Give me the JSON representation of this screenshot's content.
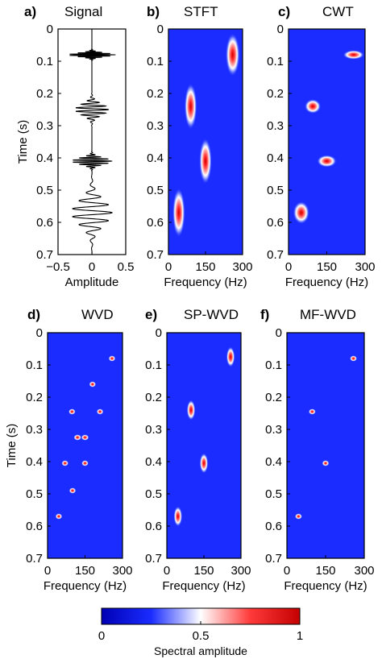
{
  "figure": {
    "colorbar": {
      "label": "Spectral amplitude",
      "ticks": [
        "0",
        "0.5",
        "1"
      ],
      "range": [
        0,
        1
      ],
      "colors": [
        "#0000b4",
        "#1a2cff",
        "#ffffff",
        "#ff3a3a",
        "#c40000"
      ]
    }
  },
  "chart_data": [
    {
      "id": "a",
      "letter": "a)",
      "title": "Signal",
      "type": "line",
      "xlabel": "Amplitude",
      "ylabel": "Time (s)",
      "xlim": [
        -0.5,
        0.5
      ],
      "ylim": [
        0,
        0.7
      ],
      "xticks": [
        "−0.5",
        "0",
        "0.5"
      ],
      "yticks": [
        "0",
        "0.1",
        "0.2",
        "0.3",
        "0.4",
        "0.5",
        "0.6",
        "0.7"
      ],
      "events": [
        {
          "t": 0.08,
          "amp": 0.35,
          "freq": 260
        },
        {
          "t": 0.25,
          "amp": 0.25,
          "freq": 90
        },
        {
          "t": 0.41,
          "amp": 0.3,
          "freq": 150
        },
        {
          "t": 0.57,
          "amp": 0.3,
          "freq": 40
        }
      ]
    },
    {
      "id": "b",
      "letter": "b)",
      "title": "STFT",
      "type": "heatmap",
      "xlabel": "Frequency (Hz)",
      "ylabel": "",
      "xlim": [
        0,
        300
      ],
      "ylim": [
        0,
        0.7
      ],
      "xticks": [
        "0",
        "150",
        "300"
      ],
      "yticks": [
        "0",
        "0.1",
        "0.2",
        "0.3",
        "0.4",
        "0.5",
        "0.6",
        "0.7"
      ],
      "blobs": [
        {
          "f": 260,
          "t": 0.08,
          "sf": 18,
          "st": 0.042,
          "a": 1
        },
        {
          "f": 90,
          "t": 0.24,
          "sf": 16,
          "st": 0.045,
          "a": 1
        },
        {
          "f": 150,
          "t": 0.41,
          "sf": 16,
          "st": 0.045,
          "a": 1
        },
        {
          "f": 42,
          "t": 0.57,
          "sf": 16,
          "st": 0.048,
          "a": 1
        }
      ]
    },
    {
      "id": "c",
      "letter": "c)",
      "title": "CWT",
      "type": "heatmap",
      "xlabel": "Frequency (Hz)",
      "ylabel": "",
      "xlim": [
        0,
        300
      ],
      "ylim": [
        0,
        0.7
      ],
      "xticks": [
        "0",
        "150",
        "300"
      ],
      "yticks": [
        "0",
        "0.1",
        "0.2",
        "0.3",
        "0.4",
        "0.5",
        "0.6",
        "0.7"
      ],
      "blobs": [
        {
          "f": 255,
          "t": 0.08,
          "sf": 26,
          "st": 0.009,
          "a": 1
        },
        {
          "f": 95,
          "t": 0.24,
          "sf": 20,
          "st": 0.014,
          "a": 1
        },
        {
          "f": 150,
          "t": 0.41,
          "sf": 24,
          "st": 0.012,
          "a": 1
        },
        {
          "f": 50,
          "t": 0.57,
          "sf": 20,
          "st": 0.022,
          "a": 1
        }
      ]
    },
    {
      "id": "d",
      "letter": "d)",
      "title": "WVD",
      "type": "heatmap",
      "xlabel": "Frequency (Hz)",
      "ylabel": "Time (s)",
      "xlim": [
        0,
        300
      ],
      "ylim": [
        0,
        0.7
      ],
      "xticks": [
        "0",
        "150",
        "300"
      ],
      "yticks": [
        "0",
        "0.1",
        "0.2",
        "0.3",
        "0.4",
        "0.5",
        "0.6",
        "0.7"
      ],
      "blobs": [
        {
          "f": 258,
          "t": 0.08,
          "sf": 9,
          "st": 0.006,
          "a": 1
        },
        {
          "f": 180,
          "t": 0.16,
          "sf": 9,
          "st": 0.006,
          "a": 1
        },
        {
          "f": 98,
          "t": 0.245,
          "sf": 9,
          "st": 0.006,
          "a": 1
        },
        {
          "f": 210,
          "t": 0.245,
          "sf": 9,
          "st": 0.006,
          "a": 1
        },
        {
          "f": 120,
          "t": 0.325,
          "sf": 10,
          "st": 0.006,
          "a": 1
        },
        {
          "f": 150,
          "t": 0.325,
          "sf": 10,
          "st": 0.006,
          "a": 1
        },
        {
          "f": 70,
          "t": 0.405,
          "sf": 9,
          "st": 0.006,
          "a": 1
        },
        {
          "f": 150,
          "t": 0.405,
          "sf": 9,
          "st": 0.006,
          "a": 1
        },
        {
          "f": 100,
          "t": 0.49,
          "sf": 9,
          "st": 0.006,
          "a": 1
        },
        {
          "f": 45,
          "t": 0.57,
          "sf": 9,
          "st": 0.006,
          "a": 1
        }
      ]
    },
    {
      "id": "e",
      "letter": "e)",
      "title": "SP-WVD",
      "type": "heatmap",
      "xlabel": "Frequency (Hz)",
      "ylabel": "",
      "xlim": [
        0,
        300
      ],
      "ylim": [
        0,
        0.7
      ],
      "xticks": [
        "0",
        "150",
        "300"
      ],
      "yticks": [
        "0",
        "0.1",
        "0.2",
        "0.3",
        "0.4",
        "0.5",
        "0.6",
        "0.7"
      ],
      "blobs": [
        {
          "f": 258,
          "t": 0.075,
          "sf": 11,
          "st": 0.02,
          "a": 1
        },
        {
          "f": 98,
          "t": 0.24,
          "sf": 11,
          "st": 0.02,
          "a": 1
        },
        {
          "f": 150,
          "t": 0.405,
          "sf": 11,
          "st": 0.02,
          "a": 1
        },
        {
          "f": 45,
          "t": 0.57,
          "sf": 11,
          "st": 0.02,
          "a": 1
        }
      ]
    },
    {
      "id": "f",
      "letter": "f)",
      "title": "MF-WVD",
      "type": "heatmap",
      "xlabel": "Frequency (Hz)",
      "ylabel": "",
      "xlim": [
        0,
        300
      ],
      "ylim": [
        0,
        0.7
      ],
      "xticks": [
        "0",
        "150",
        "300"
      ],
      "yticks": [
        "0",
        "0.1",
        "0.2",
        "0.3",
        "0.4",
        "0.5",
        "0.6",
        "0.7"
      ],
      "blobs": [
        {
          "f": 258,
          "t": 0.08,
          "sf": 9,
          "st": 0.006,
          "a": 1
        },
        {
          "f": 98,
          "t": 0.245,
          "sf": 9,
          "st": 0.006,
          "a": 1
        },
        {
          "f": 150,
          "t": 0.405,
          "sf": 9,
          "st": 0.006,
          "a": 1
        },
        {
          "f": 45,
          "t": 0.57,
          "sf": 9,
          "st": 0.006,
          "a": 1
        }
      ]
    }
  ]
}
